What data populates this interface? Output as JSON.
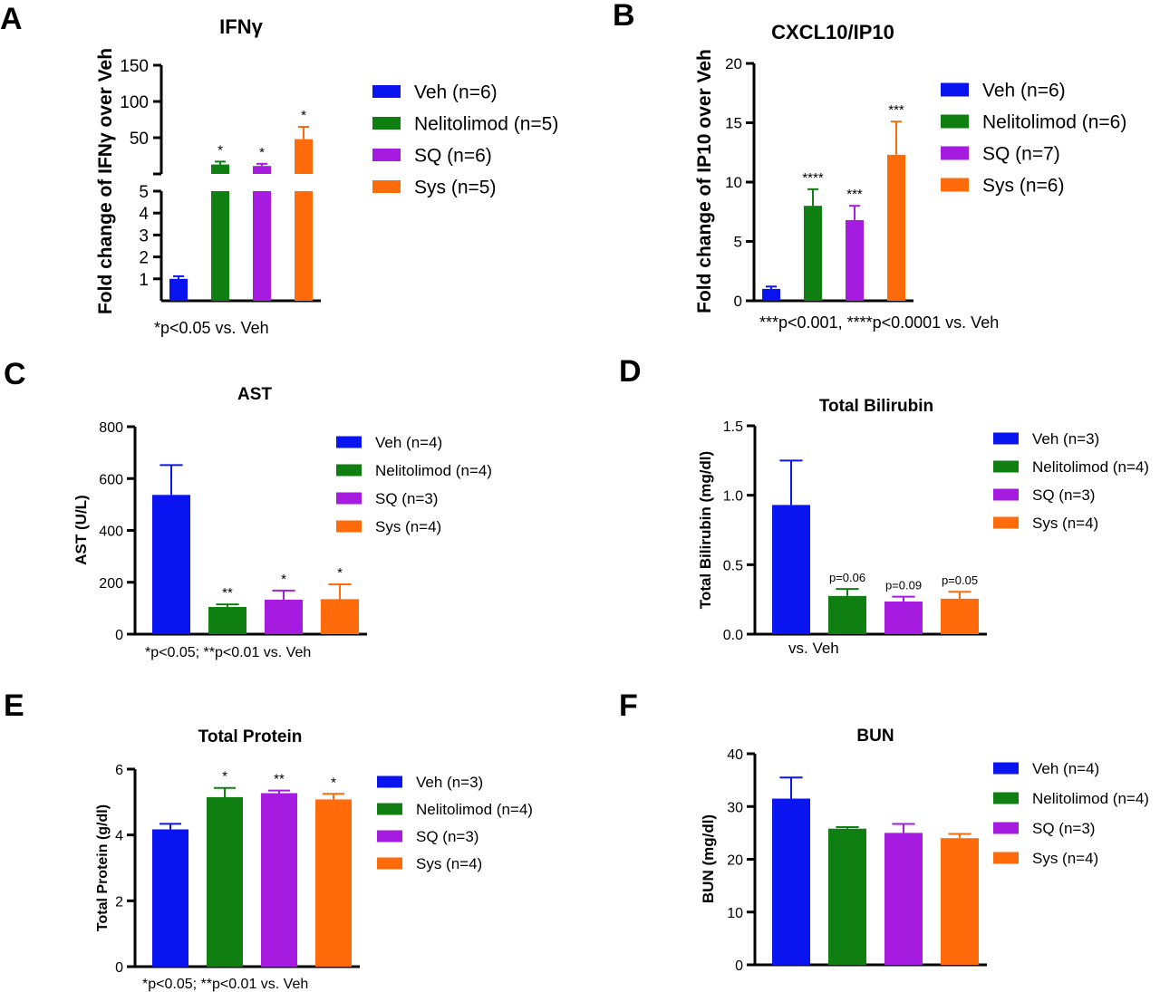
{
  "colors": {
    "Veh": "#0a14f0",
    "Nelitolimod": "#0f7f12",
    "SQ": "#a61be0",
    "Sys": "#ff6a0a",
    "axis": "#000000"
  },
  "chart_data": [
    {
      "panel": "A",
      "type": "bar",
      "broken_axis": true,
      "title": "IFNγ",
      "ylabel": "Fold change of IFNγ over Veh",
      "xlabel": "",
      "ylim_lower": [
        0,
        5
      ],
      "ylim_upper": [
        0,
        150
      ],
      "yticks_lower": [
        1,
        2,
        3,
        4,
        5
      ],
      "yticks_upper": [
        50,
        100,
        150
      ],
      "categories": [
        "Veh",
        "Nelitolimod",
        "SQ",
        "Sys"
      ],
      "values": [
        1.0,
        13,
        11,
        48
      ],
      "errors": [
        0.12,
        4,
        3,
        17
      ],
      "annotations": [
        "",
        "*",
        "*",
        "*"
      ],
      "legend": [
        "Veh (n=6)",
        "Nelitolimod (n=5)",
        "SQ (n=6)",
        "Sys (n=5)"
      ],
      "legend_position": "right",
      "footnote": "*p<0.05 vs. Veh",
      "grid": false
    },
    {
      "panel": "B",
      "type": "bar",
      "title": "CXCL10/IP10",
      "ylabel": "Fold change of IP10 over Veh",
      "xlabel": "",
      "ylim": [
        0,
        20
      ],
      "yticks": [
        0,
        5,
        10,
        15,
        20
      ],
      "categories": [
        "Veh",
        "Nelitolimod",
        "SQ",
        "Sys"
      ],
      "values": [
        1.0,
        8.0,
        6.8,
        12.3
      ],
      "errors": [
        0.2,
        1.4,
        1.2,
        2.8
      ],
      "annotations": [
        "",
        "****",
        "***",
        "***"
      ],
      "legend": [
        "Veh (n=6)",
        "Nelitolimod (n=6)",
        "SQ (n=7)",
        "Sys (n=6)"
      ],
      "legend_position": "right",
      "footnote": "***p<0.001, ****p<0.0001 vs. Veh",
      "grid": false
    },
    {
      "panel": "C",
      "type": "bar",
      "title": "AST",
      "ylabel": "AST (U/L)",
      "xlabel": "",
      "ylim": [
        0,
        800
      ],
      "yticks": [
        0,
        200,
        400,
        600,
        800
      ],
      "categories": [
        "Veh",
        "Nelitolimod",
        "SQ",
        "Sys"
      ],
      "values": [
        537,
        105,
        133,
        135
      ],
      "errors": [
        115,
        10,
        35,
        57
      ],
      "annotations": [
        "",
        "**",
        "*",
        "*"
      ],
      "legend": [
        "Veh (n=4)",
        "Nelitolimod (n=4)",
        "SQ (n=3)",
        "Sys (n=4)"
      ],
      "legend_position": "right",
      "footnote": "*p<0.05; **p<0.01 vs. Veh",
      "grid": false
    },
    {
      "panel": "D",
      "type": "bar",
      "title": "Total Bilirubin",
      "ylabel": "Total Bilirubin (mg/dl)",
      "xlabel": "",
      "ylim": [
        0,
        1.5
      ],
      "yticks": [
        0.0,
        0.5,
        1.0,
        1.5
      ],
      "ytick_labels": [
        "0.0",
        "0.5",
        "1.0",
        "1.5"
      ],
      "categories": [
        "Veh",
        "Nelitolimod",
        "SQ",
        "Sys"
      ],
      "values": [
        0.93,
        0.275,
        0.235,
        0.255
      ],
      "errors": [
        0.32,
        0.05,
        0.035,
        0.05
      ],
      "annotations": [
        "",
        "p=0.06",
        "p=0.09",
        "p=0.05"
      ],
      "legend": [
        "Veh (n=3)",
        "Nelitolimod (n=4)",
        "SQ (n=3)",
        "Sys (n=4)"
      ],
      "legend_position": "right",
      "footnote": "vs. Veh",
      "grid": false
    },
    {
      "panel": "E",
      "type": "bar",
      "title": "Total Protein",
      "ylabel": "Total Protein (g/dl)",
      "xlabel": "",
      "ylim": [
        0,
        6
      ],
      "yticks": [
        0,
        2,
        4,
        6
      ],
      "categories": [
        "Veh",
        "Nelitolimod",
        "SQ",
        "Sys"
      ],
      "values": [
        4.17,
        5.15,
        5.27,
        5.08
      ],
      "errors": [
        0.17,
        0.28,
        0.08,
        0.17
      ],
      "annotations": [
        "",
        "*",
        "**",
        "*"
      ],
      "legend": [
        "Veh (n=3)",
        "Nelitolimod (n=4)",
        "SQ (n=3)",
        "Sys (n=4)"
      ],
      "legend_position": "right",
      "footnote": "*p<0.05; **p<0.01 vs. Veh",
      "grid": false
    },
    {
      "panel": "F",
      "type": "bar",
      "title": "BUN",
      "ylabel": "BUN (mg/dl)",
      "xlabel": "",
      "ylim": [
        0,
        40
      ],
      "yticks": [
        0,
        10,
        20,
        30,
        40
      ],
      "categories": [
        "Veh",
        "Nelitolimod",
        "SQ",
        "Sys"
      ],
      "values": [
        31.5,
        25.8,
        25.0,
        24.0
      ],
      "errors": [
        4.0,
        0.3,
        1.7,
        0.8
      ],
      "annotations": [
        "",
        "",
        "",
        ""
      ],
      "legend": [
        "Veh (n=4)",
        "Nelitolimod (n=4)",
        "SQ (n=3)",
        "Sys (n=4)"
      ],
      "legend_position": "right",
      "footnote": "",
      "grid": false
    }
  ]
}
